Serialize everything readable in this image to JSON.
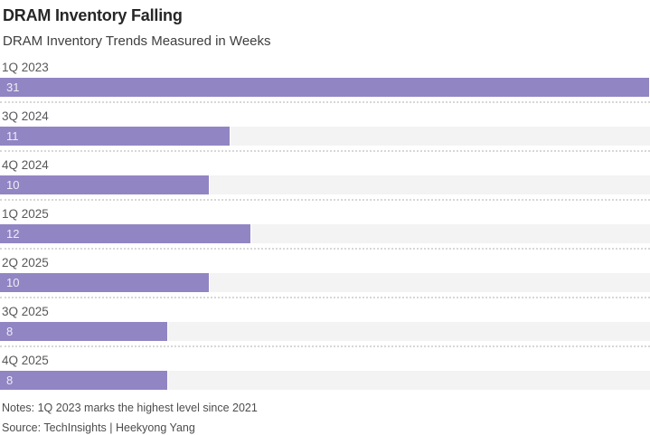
{
  "chart_data": {
    "type": "bar",
    "orientation": "horizontal",
    "title": "DRAM Inventory Falling",
    "subtitle": "DRAM Inventory Trends Measured in Weeks",
    "categories": [
      "1Q 2023",
      "3Q 2024",
      "4Q 2024",
      "1Q 2025",
      "2Q 2025",
      "3Q 2025",
      "4Q 2025"
    ],
    "values": [
      31,
      11,
      10,
      12,
      10,
      8,
      8
    ],
    "value_unit": "weeks",
    "xlim": [
      0,
      31
    ],
    "grid": false,
    "legend": false,
    "value_labels_inside_bar": true,
    "bar_color": "#9285c3",
    "track_color": "#f3f3f3",
    "notes": "Notes: 1Q 2023 marks the highest level since 2021",
    "source": "Source: TechInsights | Heekyong Yang"
  }
}
